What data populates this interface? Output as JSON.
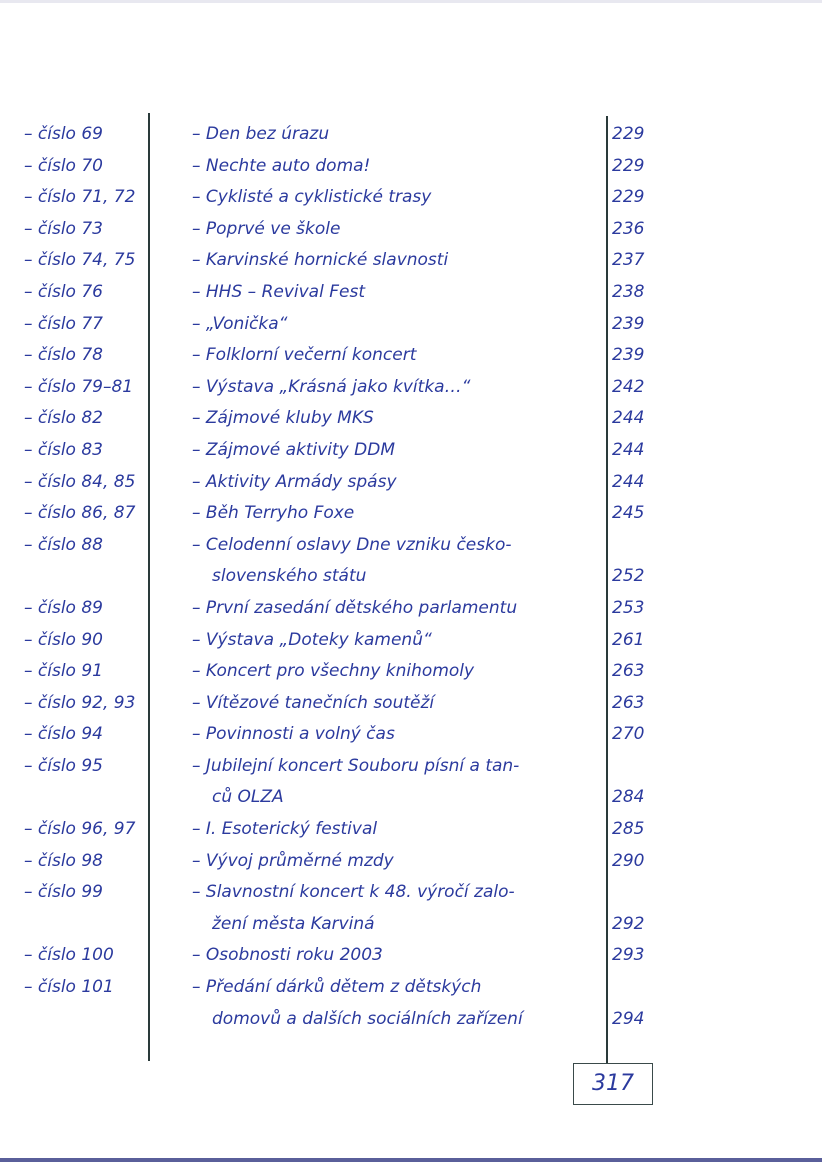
{
  "entries": [
    {
      "number": "– číslo 69",
      "title": [
        "– Den bez úrazu"
      ],
      "page": "229"
    },
    {
      "number": "– číslo 70",
      "title": [
        "– Nechte auto doma!"
      ],
      "page": "229"
    },
    {
      "number": "– číslo 71, 72",
      "title": [
        "– Cyklisté a cyklistické trasy"
      ],
      "page": "229"
    },
    {
      "number": "– číslo 73",
      "title": [
        "– Poprvé ve škole"
      ],
      "page": "236"
    },
    {
      "number": "– číslo 74, 75",
      "title": [
        "– Karvinské hornické slavnosti"
      ],
      "page": "237"
    },
    {
      "number": "– číslo 76",
      "title": [
        "– HHS – Revival Fest"
      ],
      "page": "238"
    },
    {
      "number": "– číslo 77",
      "title": [
        "– „Vonička“"
      ],
      "page": "239"
    },
    {
      "number": "– číslo 78",
      "title": [
        "– Folklorní večerní koncert"
      ],
      "page": "239"
    },
    {
      "number": "– číslo 79–81",
      "title": [
        "– Výstava „Krásná jako kvítka…“"
      ],
      "page": "242"
    },
    {
      "number": "– číslo 82",
      "title": [
        "– Zájmové kluby MKS"
      ],
      "page": "244"
    },
    {
      "number": "– číslo 83",
      "title": [
        "– Zájmové aktivity DDM"
      ],
      "page": "244"
    },
    {
      "number": "– číslo 84, 85",
      "title": [
        "– Aktivity Armády spásy"
      ],
      "page": "244"
    },
    {
      "number": "– číslo 86, 87",
      "title": [
        "– Běh Terryho Foxe"
      ],
      "page": "245"
    },
    {
      "number": "– číslo 88",
      "title": [
        "– Celodenní oslavy Dne vzniku česko-",
        "slovenského státu"
      ],
      "page": "252"
    },
    {
      "number": "– číslo 89",
      "title": [
        "– První zasedání dětského parlamentu"
      ],
      "page": "253"
    },
    {
      "number": "– číslo 90",
      "title": [
        "– Výstava „Doteky kamenů“"
      ],
      "page": "261"
    },
    {
      "number": "– číslo 91",
      "title": [
        "– Koncert pro všechny knihomoly"
      ],
      "page": "263"
    },
    {
      "number": "– číslo 92, 93",
      "title": [
        "– Vítězové tanečních soutěží"
      ],
      "page": "263"
    },
    {
      "number": "– číslo 94",
      "title": [
        "– Povinnosti a volný čas"
      ],
      "page": "270"
    },
    {
      "number": "– číslo 95",
      "title": [
        "– Jubilejní koncert Souboru písní a tan-",
        "ců OLZA"
      ],
      "page": "284"
    },
    {
      "number": "– číslo 96, 97",
      "title": [
        "– I. Esoterický festival"
      ],
      "page": "285"
    },
    {
      "number": "– číslo 98",
      "title": [
        "– Vývoj průměrné mzdy"
      ],
      "page": "290"
    },
    {
      "number": "– číslo 99",
      "title": [
        "– Slavnostní koncert k 48. výročí zalo-",
        "žení města Karviná"
      ],
      "page": "292"
    },
    {
      "number": "– číslo 100",
      "title": [
        "– Osobnosti roku 2003"
      ],
      "page": "293"
    },
    {
      "number": "– číslo 101",
      "title": [
        "– Předání dárků dětem z dětských",
        "domovů a dalších sociálních zařízení"
      ],
      "page": "294"
    }
  ],
  "sheet_number": "317"
}
